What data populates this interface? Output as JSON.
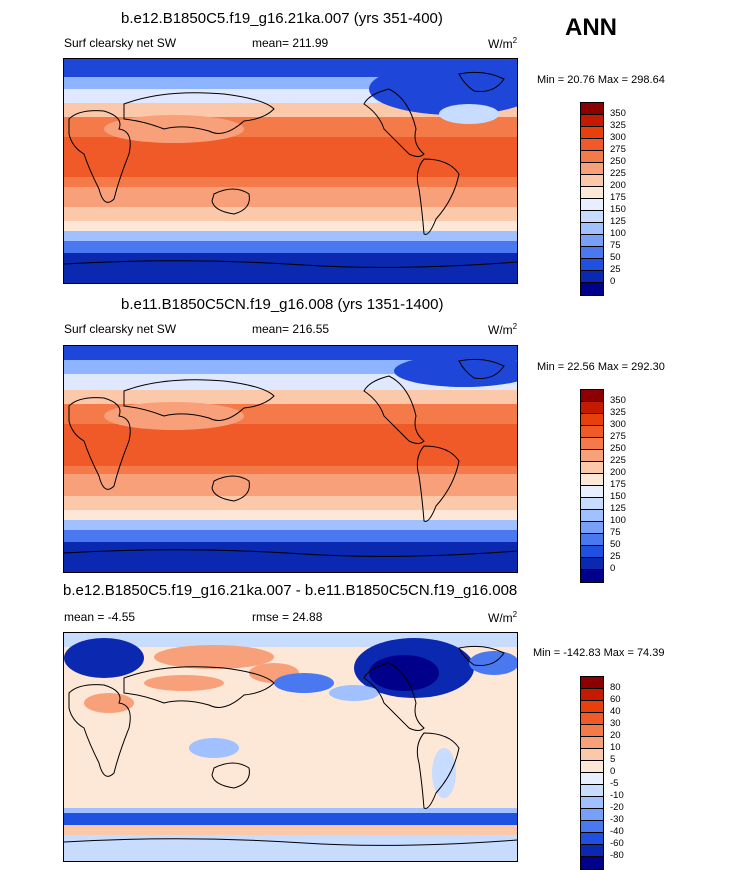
{
  "season": "ANN",
  "panels": [
    {
      "title": "b.e12.B1850C5.f19_g16.21ka.007 (yrs 351-400)",
      "left_label": "Surf clearsky net SW",
      "stat_label": "mean= 211.99",
      "units": "W/m",
      "units_sup": "2",
      "minmax": "Min = 20.76 Max = 298.64"
    },
    {
      "title": "b.e11.B1850C5CN.f19_g16.008 (yrs 1351-1400)",
      "left_label": "Surf clearsky net SW",
      "stat_label": "mean= 216.55",
      "units": "W/m",
      "units_sup": "2",
      "minmax": "Min = 22.56 Max = 292.30"
    },
    {
      "title": "b.e12.B1850C5.f19_g16.21ka.007 - b.e11.B1850C5CN.f19_g16.008",
      "left_label": "mean = -4.55",
      "stat_label": "rmse = 24.88",
      "units": "W/m",
      "units_sup": "2",
      "minmax": "Min = -142.83 Max = 74.39"
    }
  ],
  "chart_data": [
    {
      "type": "heatmap",
      "title": "b.e12.B1850C5.f19_g16.21ka.007 (yrs 351-400)",
      "variable": "Surf clearsky net SW",
      "season": "ANN",
      "units": "W/m2",
      "mean": 211.99,
      "min": 20.76,
      "max": 298.64,
      "colorbar_levels": [
        350,
        325,
        300,
        275,
        250,
        225,
        200,
        175,
        150,
        125,
        100,
        75,
        50,
        25,
        0
      ],
      "colorbar_colors": [
        "#8b0000",
        "#c41a00",
        "#e8400c",
        "#f05a28",
        "#f47a4a",
        "#f8a07a",
        "#fbc8aa",
        "#fde8d8",
        "#e8f0ff",
        "#c8dcff",
        "#a0c0ff",
        "#78a0f8",
        "#4a78f0",
        "#2050e0",
        "#0a28b0",
        "#00008b"
      ]
    },
    {
      "type": "heatmap",
      "title": "b.e11.B1850C5CN.f19_g16.008 (yrs 1351-1400)",
      "variable": "Surf clearsky net SW",
      "season": "ANN",
      "units": "W/m2",
      "mean": 216.55,
      "min": 22.56,
      "max": 292.3,
      "colorbar_levels": [
        350,
        325,
        300,
        275,
        250,
        225,
        200,
        175,
        150,
        125,
        100,
        75,
        50,
        25,
        0
      ],
      "colorbar_colors": [
        "#8b0000",
        "#c41a00",
        "#e8400c",
        "#f05a28",
        "#f47a4a",
        "#f8a07a",
        "#fbc8aa",
        "#fde8d8",
        "#e8f0ff",
        "#c8dcff",
        "#a0c0ff",
        "#78a0f8",
        "#4a78f0",
        "#2050e0",
        "#0a28b0",
        "#00008b"
      ]
    },
    {
      "type": "heatmap",
      "title": "b.e12.B1850C5.f19_g16.21ka.007 - b.e11.B1850C5CN.f19_g16.008",
      "season": "ANN",
      "units": "W/m2",
      "mean": -4.55,
      "rmse": 24.88,
      "min": -142.83,
      "max": 74.39,
      "colorbar_levels": [
        80,
        60,
        40,
        30,
        20,
        10,
        5,
        0,
        -5,
        -10,
        -20,
        -30,
        -40,
        -60,
        -80
      ],
      "colorbar_colors": [
        "#8b0000",
        "#c41a00",
        "#e8400c",
        "#f05a28",
        "#f47a4a",
        "#f8a07a",
        "#fbc8aa",
        "#fde8d8",
        "#e8f0ff",
        "#c8dcff",
        "#a0c0ff",
        "#78a0f8",
        "#4a78f0",
        "#2050e0",
        "#0a28b0",
        "#00008b"
      ]
    }
  ]
}
